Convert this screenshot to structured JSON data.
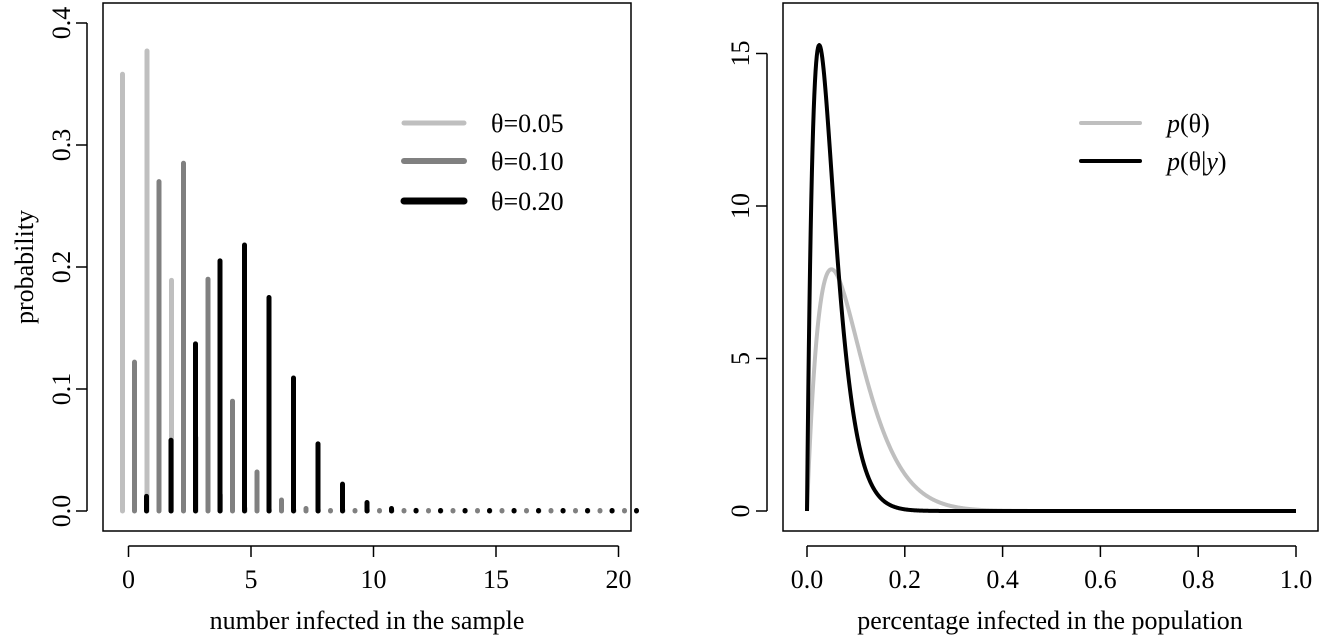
{
  "chart_data": [
    {
      "type": "bar",
      "xlabel": "number infected in the sample",
      "ylabel": "probability",
      "xlim": [
        -1,
        20.5
      ],
      "ylim": [
        0,
        0.4
      ],
      "xticks": [
        0,
        5,
        10,
        15,
        20
      ],
      "yticks": [
        0.0,
        0.1,
        0.2,
        0.3,
        0.4
      ],
      "ytick_labels": [
        "0.0",
        "0.1",
        "0.2",
        "0.3",
        "0.4"
      ],
      "legend_position": "top-right",
      "x": [
        0,
        1,
        2,
        3,
        4,
        5,
        6,
        7,
        8,
        9,
        10,
        11,
        12,
        13,
        14,
        15,
        16,
        17,
        18,
        19,
        20
      ],
      "series": [
        {
          "name": "θ=0.05",
          "color": "#bfbfbf",
          "values": [
            0.358,
            0.377,
            0.189,
            0.06,
            0.013,
            0.002,
            0.0003,
            0,
            0,
            0,
            0,
            0,
            0,
            0,
            0,
            0,
            0,
            0,
            0,
            0,
            0
          ]
        },
        {
          "name": "θ=0.10",
          "color": "#808080",
          "values": [
            0.122,
            0.27,
            0.285,
            0.19,
            0.09,
            0.032,
            0.009,
            0.002,
            0.0004,
            0,
            0,
            0,
            0,
            0,
            0,
            0,
            0,
            0,
            0,
            0,
            0
          ]
        },
        {
          "name": "θ=0.20",
          "color": "#000000",
          "values": [
            0.012,
            0.058,
            0.137,
            0.205,
            0.218,
            0.175,
            0.109,
            0.055,
            0.022,
            0.007,
            0.002,
            0.0005,
            0,
            0,
            0,
            0,
            0,
            0,
            0,
            0,
            0
          ]
        }
      ]
    },
    {
      "type": "line",
      "xlabel": "percentage infected in the population",
      "ylabel": "",
      "xlim": [
        0,
        1
      ],
      "ylim": [
        0,
        16
      ],
      "xticks": [
        0.0,
        0.2,
        0.4,
        0.6,
        0.8,
        1.0
      ],
      "xtick_labels": [
        "0.0",
        "0.2",
        "0.4",
        "0.6",
        "0.8",
        "1.0"
      ],
      "yticks": [
        0,
        5,
        10,
        15
      ],
      "ytick_labels": [
        "0",
        "5",
        "10",
        "15"
      ],
      "legend_position": "top-right",
      "series": [
        {
          "name_prefix": "p",
          "name_arg": "θ",
          "color": "#bfbfbf",
          "distribution": "beta",
          "a": 2,
          "b": 20
        },
        {
          "name_prefix": "p",
          "name_arg": "θ|",
          "name_arg_italic": "y",
          "color": "#000000",
          "distribution": "beta",
          "a": 2,
          "b": 40
        }
      ]
    }
  ]
}
